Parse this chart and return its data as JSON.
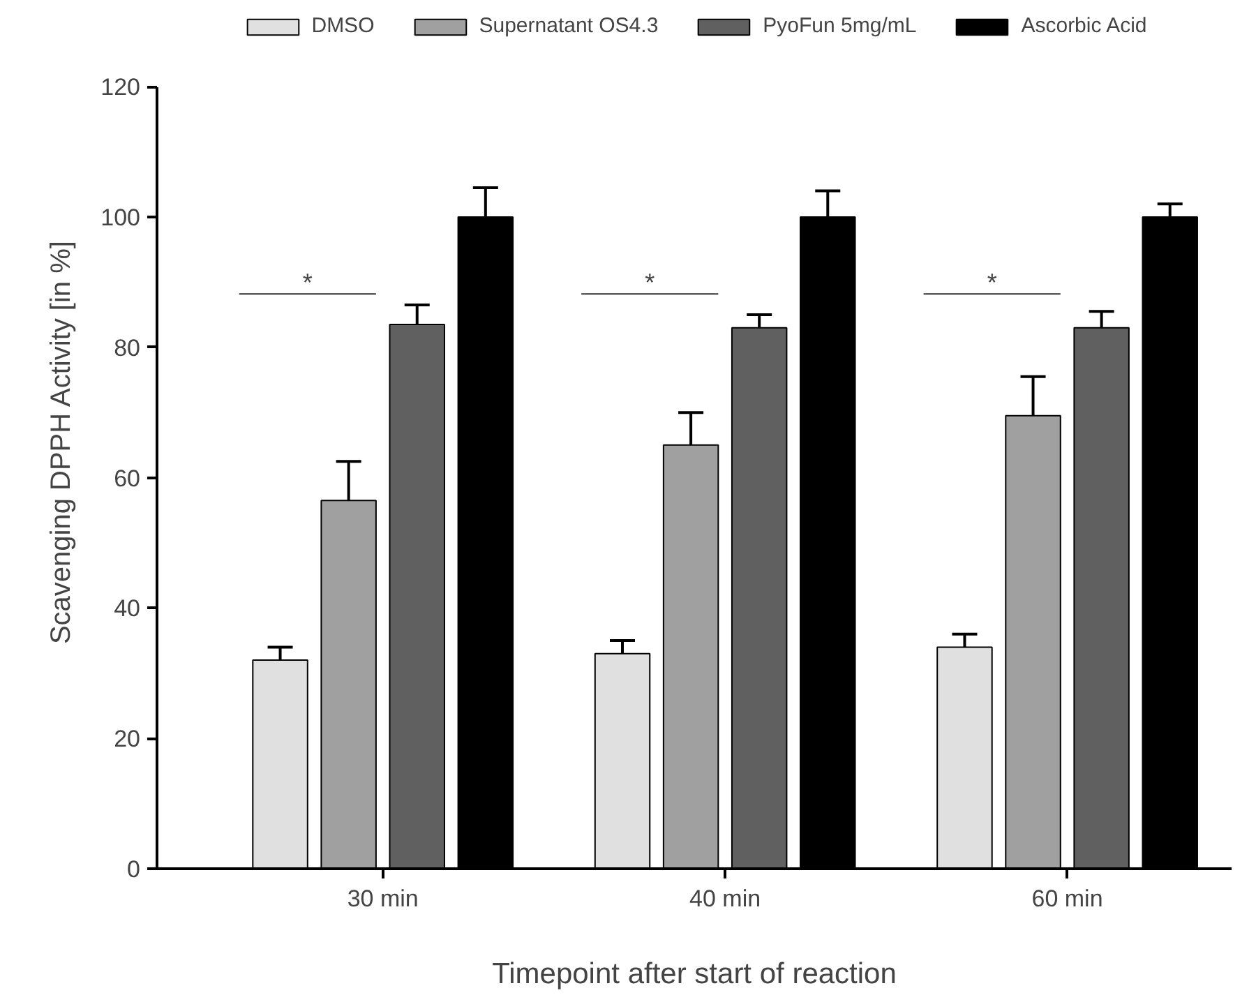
{
  "chart_data": {
    "type": "bar",
    "xlabel": "Timepoint after start of reaction",
    "ylabel": "Scavenging DPPH Activity [in %]",
    "categories": [
      "30 min",
      "40 min",
      "60 min"
    ],
    "series": [
      {
        "name": "DMSO",
        "color": "#e0e0e0",
        "values": [
          32,
          33,
          34
        ],
        "errors": [
          2,
          2,
          2
        ]
      },
      {
        "name": "Supernatant OS4.3",
        "color": "#a0a0a0",
        "values": [
          56.5,
          65,
          69.5
        ],
        "errors": [
          6,
          5,
          6
        ]
      },
      {
        "name": "PyoFun 5mg/mL",
        "color": "#606060",
        "values": [
          83.5,
          83,
          83
        ],
        "errors": [
          3,
          2,
          2.5
        ]
      },
      {
        "name": "Ascorbic Acid",
        "color": "#000000",
        "values": [
          100,
          100,
          100
        ],
        "errors": [
          4.5,
          4,
          2
        ]
      }
    ],
    "ylim": [
      0,
      120
    ],
    "yticks": [
      0,
      20,
      40,
      60,
      80,
      100,
      120
    ],
    "grid": false,
    "legend": "top",
    "annotations": [
      "*",
      "*",
      "*"
    ]
  }
}
